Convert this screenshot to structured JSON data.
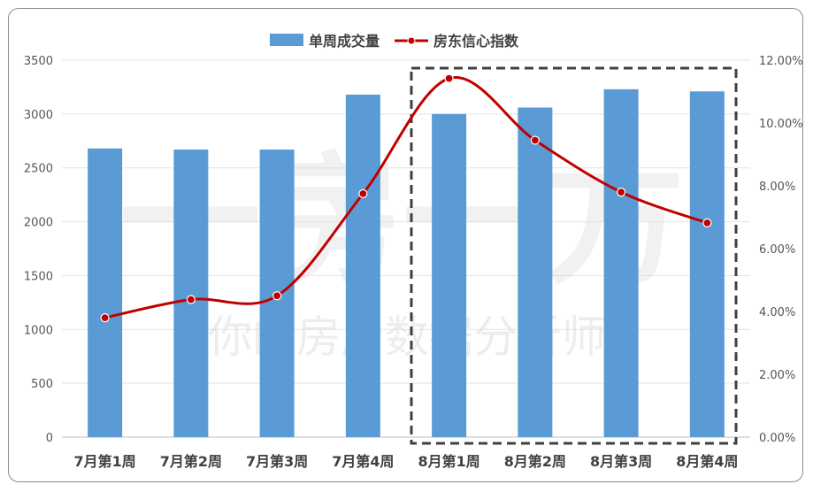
{
  "chart_data": {
    "type": "bar",
    "categories": [
      "7月第1周",
      "7月第2周",
      "7月第3周",
      "7月第4周",
      "8月第1周",
      "8月第2周",
      "8月第3周",
      "8月第4周"
    ],
    "series": [
      {
        "name": "单周成交量",
        "type": "bar",
        "axis": "left",
        "color": "#5b9bd5",
        "values": [
          2680,
          2670,
          2670,
          3180,
          3000,
          3060,
          3230,
          3210
        ]
      },
      {
        "name": "房东信心指数",
        "type": "line",
        "axis": "right",
        "color": "#c00000",
        "values": [
          0.038,
          0.0438,
          0.045,
          0.0775,
          0.1142,
          0.0945,
          0.078,
          0.0682
        ]
      }
    ],
    "y_left": {
      "ylim": [
        0,
        3500
      ],
      "ticks": [
        "0",
        "500",
        "1000",
        "1500",
        "2000",
        "2500",
        "3000",
        "3500"
      ]
    },
    "y_right": {
      "ylim": [
        0,
        0.12
      ],
      "ticks": [
        "0.00%",
        "2.00%",
        "4.00%",
        "6.00%",
        "8.00%",
        "10.00%",
        "12.00%"
      ]
    },
    "grid": true,
    "legend_position": "top",
    "highlight": "8月第1周–8月第4周 (dashed box)",
    "watermark": [
      "一房一方",
      "你的房产数据分析师"
    ]
  }
}
